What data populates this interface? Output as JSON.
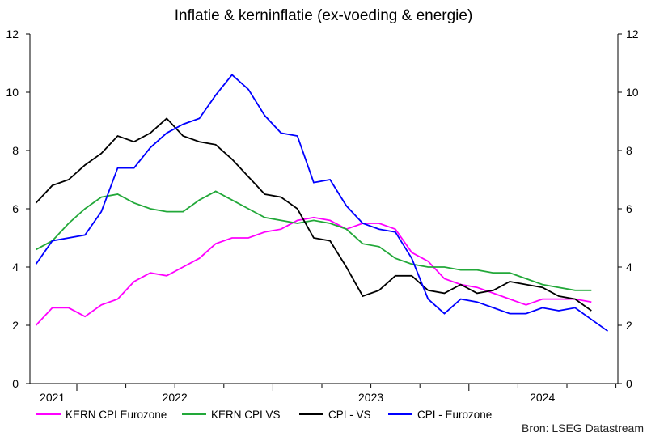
{
  "chart_data": {
    "type": "line",
    "title": "Inflatie & kerninflatie (ex-voeding & energie)",
    "source": "Bron: LSEG Datastream",
    "ylim": [
      0,
      12
    ],
    "yticks": [
      0,
      2,
      4,
      6,
      8,
      10,
      12
    ],
    "xlim": [
      "2021-10",
      "2024-10"
    ],
    "xtick_labels": [
      "2021",
      "2022",
      "2023",
      "2024"
    ],
    "grid": false,
    "legend": "bottom",
    "start": "2021-10",
    "series": [
      {
        "name": "KERN CPI Eurozone",
        "color": "#ff00ff",
        "values": [
          2.0,
          2.6,
          2.6,
          2.3,
          2.7,
          2.9,
          3.5,
          3.8,
          3.7,
          4.0,
          4.3,
          4.8,
          5.0,
          5.0,
          5.2,
          5.3,
          5.6,
          5.7,
          5.6,
          5.3,
          5.5,
          5.5,
          5.3,
          4.5,
          4.2,
          3.6,
          3.4,
          3.3,
          3.1,
          2.9,
          2.7,
          2.9,
          2.9,
          2.9,
          2.8
        ]
      },
      {
        "name": "KERN CPI VS",
        "color": "#22a839",
        "values": [
          4.6,
          4.9,
          5.5,
          6.0,
          6.4,
          6.5,
          6.2,
          6.0,
          5.9,
          5.9,
          6.3,
          6.6,
          6.3,
          6.0,
          5.7,
          5.6,
          5.5,
          5.6,
          5.5,
          5.3,
          4.8,
          4.7,
          4.3,
          4.1,
          4.0,
          4.0,
          3.9,
          3.9,
          3.8,
          3.8,
          3.6,
          3.4,
          3.3,
          3.2,
          3.2
        ]
      },
      {
        "name": "CPI - VS",
        "color": "#000000",
        "values": [
          6.2,
          6.8,
          7.0,
          7.5,
          7.9,
          8.5,
          8.3,
          8.6,
          9.1,
          8.5,
          8.3,
          8.2,
          7.7,
          7.1,
          6.5,
          6.4,
          6.0,
          5.0,
          4.9,
          4.0,
          3.0,
          3.2,
          3.7,
          3.7,
          3.2,
          3.1,
          3.4,
          3.1,
          3.2,
          3.5,
          3.4,
          3.3,
          3.0,
          2.9,
          2.5
        ]
      },
      {
        "name": "CPI - Eurozone",
        "color": "#0000ff",
        "values": [
          4.1,
          4.9,
          5.0,
          5.1,
          5.9,
          7.4,
          7.4,
          8.1,
          8.6,
          8.9,
          9.1,
          9.9,
          10.6,
          10.1,
          9.2,
          8.6,
          8.5,
          6.9,
          7.0,
          6.1,
          5.5,
          5.3,
          5.2,
          4.3,
          2.9,
          2.4,
          2.9,
          2.8,
          2.6,
          2.4,
          2.4,
          2.6,
          2.5,
          2.6,
          2.2,
          1.8
        ]
      }
    ]
  }
}
